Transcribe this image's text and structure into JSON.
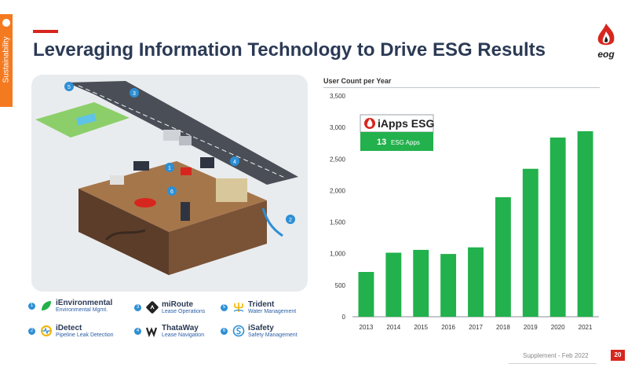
{
  "side_tab": {
    "label": "Sustainability"
  },
  "header": {
    "title": "Leveraging Information Technology to Drive ESG Results",
    "logo_text": "eog"
  },
  "illustration": {
    "markers": [
      "1",
      "2",
      "3",
      "4",
      "5",
      "6"
    ]
  },
  "legend": [
    {
      "num": "1",
      "name": "iEnvironmental",
      "sub": "Environmental Mgmt."
    },
    {
      "num": "2",
      "name": "iDetect",
      "sub": "Pipeline Leak Detection"
    },
    {
      "num": "3",
      "name": "miRoute",
      "sub": "Lease Operations"
    },
    {
      "num": "4",
      "name": "ThataWay",
      "sub": "Lease Navigation"
    },
    {
      "num": "5",
      "name": "Trident",
      "sub": "Water Management"
    },
    {
      "num": "6",
      "name": "iSafety",
      "sub": "Safety Management"
    }
  ],
  "callout": {
    "title": "iApps ESG",
    "count": "13",
    "label": "ESG Apps"
  },
  "chart_data": {
    "type": "bar",
    "title": "User Count per Year",
    "categories": [
      "2013",
      "2014",
      "2015",
      "2016",
      "2017",
      "2018",
      "2019",
      "2020",
      "2021"
    ],
    "values": [
      710,
      1015,
      1060,
      995,
      1100,
      1895,
      2345,
      2840,
      2940
    ],
    "y_ticks": [
      "0",
      "500",
      "1,000",
      "1,500",
      "2,000",
      "2,500",
      "3,000",
      "3,500"
    ],
    "ylim": [
      0,
      3500
    ],
    "bar_color": "#22b14c",
    "grid": false
  },
  "footer": {
    "text": "Supplement - Feb 2022",
    "page": "20"
  }
}
